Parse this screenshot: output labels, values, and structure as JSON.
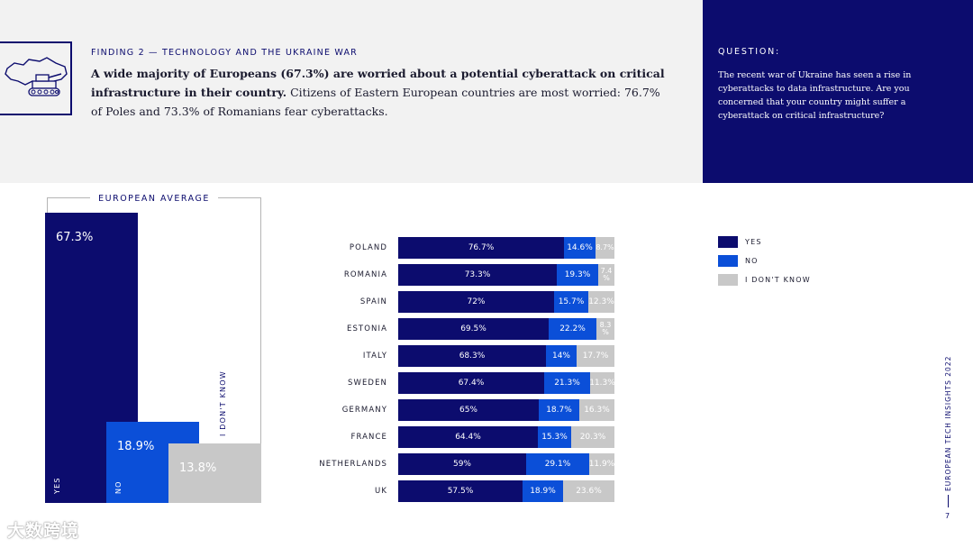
{
  "header": {
    "finding_label": "FINDING 2 — TECHNOLOGY AND THE UKRAINE WAR",
    "headline_bold": "A wide majority of Europeans (67.3%) are worried about a potential cyberattack on critical infrastructure in their country.",
    "headline_rest": "Citizens of Eastern European countries are most worried: 76.7% of Poles and 73.3% of Romanians fear cyberattacks."
  },
  "question": {
    "label": "QUESTION:",
    "text": "The recent war of Ukraine has seen a rise in cyberattacks to data infrastructure. Are you concerned that your country might suffer a cyberattack on critical infrastructure?"
  },
  "colors": {
    "yes": "#0c0c6e",
    "no": "#0b4fd8",
    "idk": "#c8c8c8",
    "panel": "#0c0c6e"
  },
  "chart_data": [
    {
      "type": "bar",
      "title": "EUROPEAN AVERAGE",
      "categories": [
        "YES",
        "NO",
        "I DON'T KNOW"
      ],
      "values": [
        67.3,
        18.9,
        13.8
      ],
      "value_labels": [
        "67.3%",
        "18.9%",
        "13.8%"
      ],
      "ylim": [
        0,
        67.3
      ]
    },
    {
      "type": "bar",
      "orientation": "horizontal-stacked",
      "categories": [
        "POLAND",
        "ROMANIA",
        "SPAIN",
        "ESTONIA",
        "ITALY",
        "SWEDEN",
        "GERMANY",
        "FRANCE",
        "NETHERLANDS",
        "UK"
      ],
      "series": [
        {
          "name": "YES",
          "values": [
            76.7,
            73.3,
            72,
            69.5,
            68.3,
            67.4,
            65,
            64.4,
            59,
            57.5
          ],
          "labels": [
            "76.7%",
            "73.3%",
            "72%",
            "69.5%",
            "68.3%",
            "67.4%",
            "65%",
            "64.4%",
            "59%",
            "57.5%"
          ]
        },
        {
          "name": "NO",
          "values": [
            14.6,
            19.3,
            15.7,
            22.2,
            14,
            21.3,
            18.7,
            15.3,
            29.1,
            18.9
          ],
          "labels": [
            "14.6%",
            "19.3%",
            "15.7%",
            "22.2%",
            "14%",
            "21.3%",
            "18.7%",
            "15.3%",
            "29.1%",
            "18.9%"
          ]
        },
        {
          "name": "I DON'T KNOW",
          "values": [
            8.7,
            7.4,
            12.3,
            8.3,
            17.7,
            11.3,
            16.3,
            20.3,
            11.9,
            23.6
          ],
          "labels": [
            "8.7%",
            "7.4 %",
            "12.3%",
            "8.3 %",
            "17.7%",
            "11.3%",
            "16.3%",
            "20.3%",
            "11.9%",
            "23.6%"
          ]
        }
      ],
      "legend": [
        "YES",
        "NO",
        "I DON'T KNOW"
      ],
      "legend_position": "right"
    }
  ],
  "footer": {
    "side_brand": "EUROPEAN TECH INSIGHTS 2022",
    "page_number": "7",
    "watermark": "大数跨境"
  }
}
